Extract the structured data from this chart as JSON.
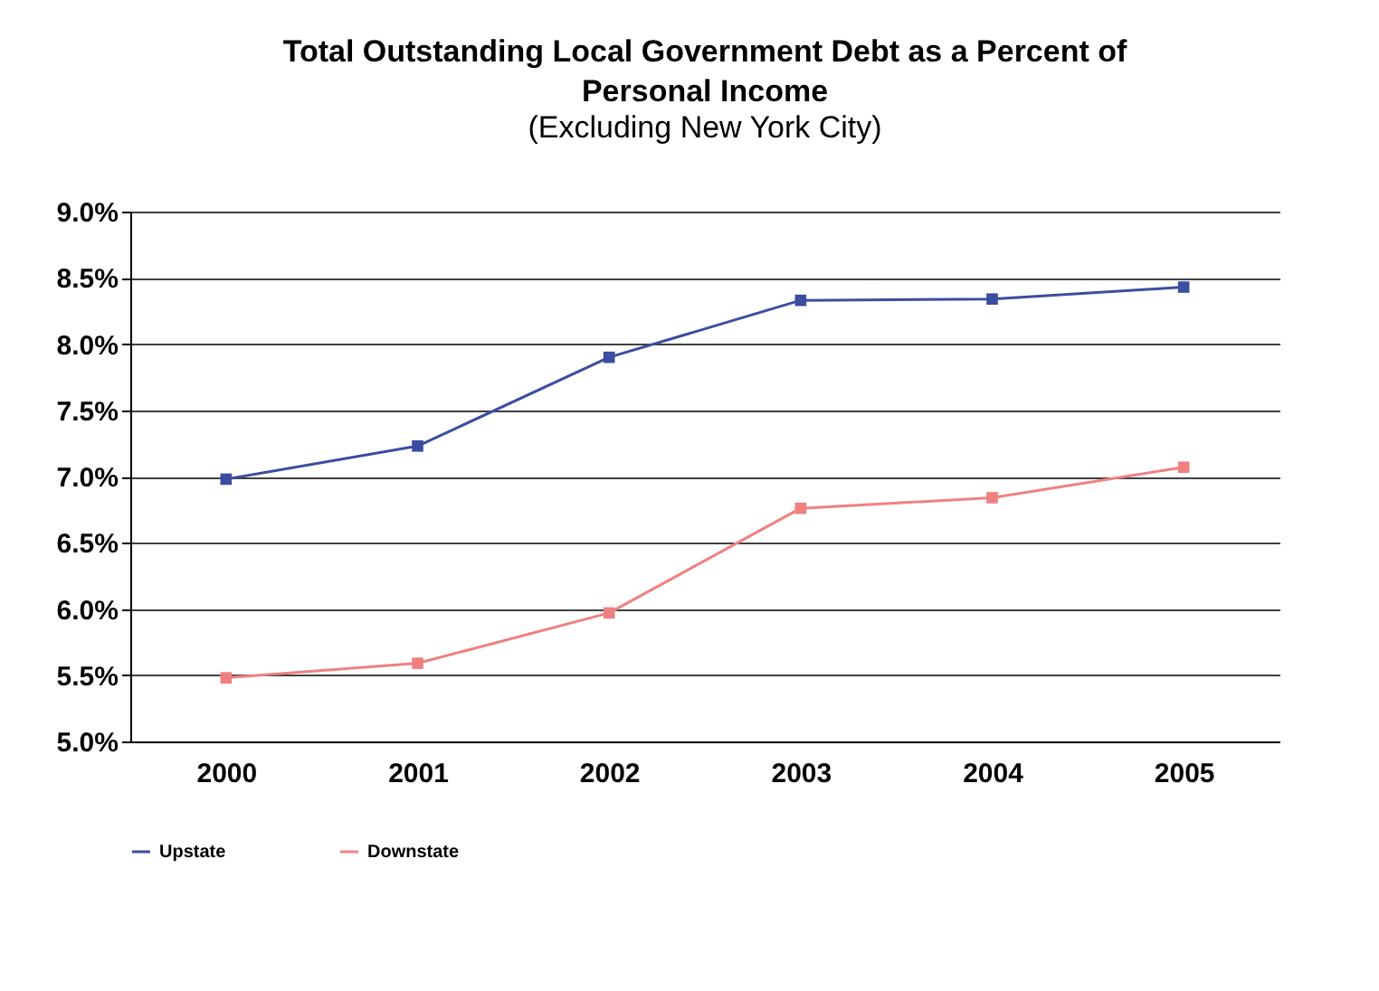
{
  "chart_data": {
    "type": "line",
    "title": "Total Outstanding Local Government Debt as a Percent of Personal Income",
    "subtitle": "(Excluding New York City)",
    "categories": [
      "2000",
      "2001",
      "2002",
      "2003",
      "2004",
      "2005"
    ],
    "series": [
      {
        "name": "Upstate",
        "color": "#3b4da0",
        "values": [
          6.98,
          7.23,
          7.9,
          8.33,
          8.34,
          8.43
        ]
      },
      {
        "name": "Downstate",
        "color": "#f08080",
        "values": [
          5.48,
          5.59,
          5.97,
          6.76,
          6.84,
          7.07
        ]
      }
    ],
    "ylim": [
      5,
      9
    ],
    "yticks": [
      {
        "value": 5,
        "label": "5.0%"
      },
      {
        "value": 5.5,
        "label": "5.5%"
      },
      {
        "value": 6,
        "label": "6.0%"
      },
      {
        "value": 6.5,
        "label": "6.5%"
      },
      {
        "value": 7,
        "label": "7.0%"
      },
      {
        "value": 7.5,
        "label": "7.5%"
      },
      {
        "value": 8,
        "label": "8.0%"
      },
      {
        "value": 8.5,
        "label": "8.5%"
      },
      {
        "value": 9,
        "label": "9.0%"
      }
    ],
    "grid": "y",
    "legend": "bottom",
    "marker": "square",
    "line_style": "solid"
  }
}
